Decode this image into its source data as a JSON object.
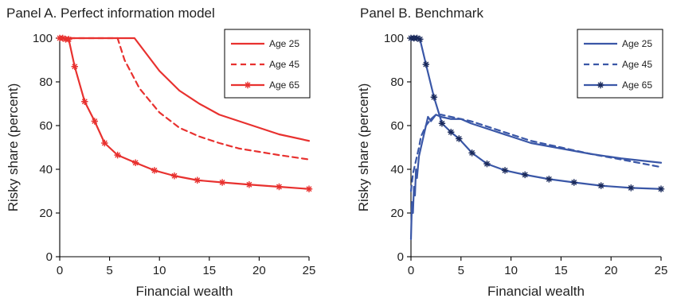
{
  "chart_data": [
    {
      "type": "line",
      "title": "Panel A. Perfect information model",
      "xlabel": "Financial wealth",
      "ylabel": "Risky share (percent)",
      "xlim": [
        0,
        25
      ],
      "ylim": [
        0,
        100
      ],
      "xticks": [
        0,
        5,
        10,
        15,
        20,
        25
      ],
      "yticks": [
        0,
        20,
        40,
        60,
        80,
        100
      ],
      "legend": "top-right",
      "color": "#e8312f",
      "series": [
        {
          "name": "Age 25",
          "style": "solid",
          "x": [
            0,
            2,
            4,
            6,
            7.5,
            8.5,
            10,
            12,
            14,
            16,
            18,
            20,
            22,
            25
          ],
          "y": [
            100,
            100,
            100,
            100,
            100,
            94,
            85,
            76,
            70,
            65,
            62,
            59,
            56,
            53
          ]
        },
        {
          "name": "Age 45",
          "style": "dashed",
          "x": [
            0,
            2,
            4,
            5.8,
            6.5,
            8,
            10,
            12,
            14,
            16,
            18,
            20,
            22,
            25
          ],
          "y": [
            100,
            100,
            100,
            100,
            90,
            77,
            66,
            59,
            55,
            52,
            49.5,
            48,
            46.5,
            44.5
          ]
        },
        {
          "name": "Age 65",
          "style": "solid-star",
          "x": [
            0,
            0.3,
            0.6,
            0.9,
            1.5,
            2.5,
            3.5,
            4.5,
            5.8,
            7.6,
            9.5,
            11.5,
            13.8,
            16.3,
            19,
            22,
            25
          ],
          "y": [
            100,
            100,
            99.5,
            99.5,
            87,
            71,
            62,
            52,
            46.5,
            43,
            39.5,
            37,
            35,
            34,
            33,
            32,
            31
          ]
        }
      ]
    },
    {
      "type": "line",
      "title": "Panel B. Benchmark",
      "xlabel": "Financial wealth",
      "ylabel": "Risky share (percent)",
      "xlim": [
        0,
        25
      ],
      "ylim": [
        0,
        100
      ],
      "xticks": [
        0,
        5,
        10,
        15,
        20,
        25
      ],
      "yticks": [
        0,
        20,
        40,
        60,
        80,
        100
      ],
      "legend": "top-right",
      "color": "#3a57a7",
      "series": [
        {
          "name": "Age 25",
          "style": "solid",
          "x": [
            0,
            0.1,
            0.2,
            0.3,
            0.4,
            0.5,
            0.6,
            0.8,
            1.0,
            1.3,
            1.7,
            2.0,
            2.5,
            3.0,
            4.0,
            5.0,
            6.0,
            8.0,
            10,
            12,
            15,
            18,
            21,
            25
          ],
          "y": [
            8,
            25,
            20,
            32,
            28,
            40,
            36,
            46,
            50,
            56,
            64,
            62,
            65,
            64,
            63,
            63,
            61,
            58,
            55,
            52,
            49.5,
            47,
            45,
            43
          ]
        },
        {
          "name": "Age 45",
          "style": "dashed",
          "x": [
            0,
            0.2,
            0.4,
            0.6,
            0.8,
            1.0,
            1.5,
            2.0,
            2.5,
            3.0,
            4.0,
            5.0,
            6.0,
            8.0,
            10,
            12,
            15,
            18,
            21,
            25
          ],
          "y": [
            30,
            38,
            42,
            46,
            50,
            55,
            60,
            63,
            65,
            65,
            64,
            63,
            62,
            59,
            56,
            53,
            50,
            47,
            44.5,
            41
          ]
        },
        {
          "name": "Age 65",
          "style": "solid-star",
          "x": [
            0,
            0.3,
            0.6,
            0.9,
            1.5,
            2.3,
            3.1,
            4.0,
            4.8,
            6.1,
            7.6,
            9.4,
            11.4,
            13.8,
            16.3,
            19,
            22,
            25
          ],
          "y": [
            100,
            100,
            100,
            99.5,
            88,
            73,
            61,
            57,
            54,
            47.5,
            42.5,
            39.5,
            37.5,
            35.5,
            34,
            32.5,
            31.5,
            31
          ]
        }
      ]
    }
  ]
}
